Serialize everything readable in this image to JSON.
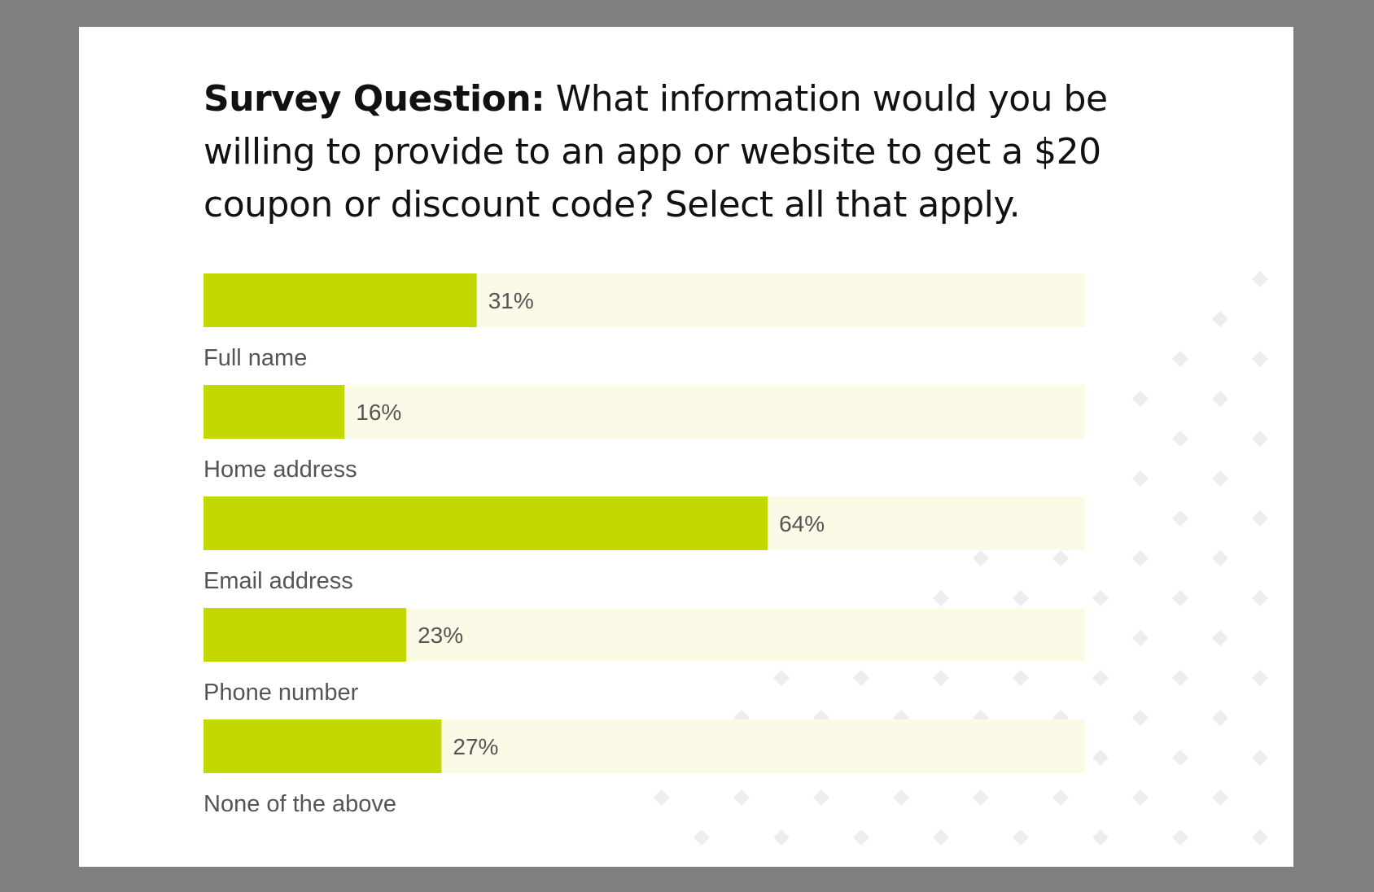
{
  "question": {
    "label": "Survey Question:",
    "text": "What information would you be willing to provide to an app or website to get a $20 coupon or discount code? Select all that apply."
  },
  "colors": {
    "bar_fill": "#c2d800",
    "bar_track": "#fafae6",
    "value_text": "#555555",
    "category_text": "#555555",
    "decor": "#ededed"
  },
  "chart_data": {
    "type": "bar",
    "orientation": "horizontal",
    "categories": [
      "Full name",
      "Home address",
      "Email address",
      "Phone number",
      "None of the above"
    ],
    "values": [
      31,
      16,
      64,
      23,
      27
    ],
    "value_labels": [
      "31%",
      "16%",
      "64%",
      "23%",
      "27%"
    ],
    "xlim": [
      0,
      100
    ],
    "title": "",
    "xlabel": "",
    "ylabel": "",
    "grid": false,
    "legend": "none"
  }
}
